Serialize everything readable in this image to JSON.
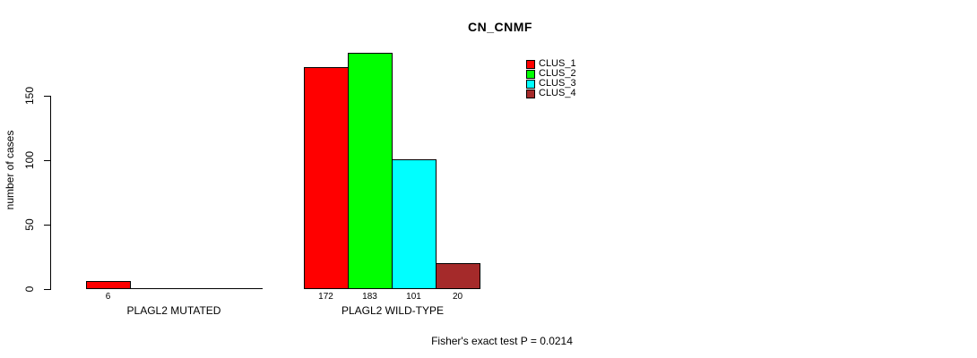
{
  "chart_data": {
    "type": "bar",
    "title": "CN_CNMF",
    "xlabel": "",
    "ylabel": "number of cases",
    "ylim": [
      0,
      150
    ],
    "yticks": [
      0,
      50,
      100,
      150
    ],
    "grid": false,
    "legend_position": "top-right",
    "categories": [
      "PLAGL2 MUTATED",
      "PLAGL2 WILD-TYPE"
    ],
    "series": [
      {
        "name": "CLUS_1",
        "color": "#FF0000",
        "values": [
          6,
          172
        ]
      },
      {
        "name": "CLUS_2",
        "color": "#00FF00",
        "values": [
          0,
          183
        ]
      },
      {
        "name": "CLUS_3",
        "color": "#00FFFF",
        "values": [
          0,
          101
        ]
      },
      {
        "name": "CLUS_4",
        "color": "#A52A2A",
        "values": [
          0,
          20
        ]
      }
    ],
    "bar_value_labels_shown_for_nonzero": true,
    "annotation": "Fisher's exact test P = 0.0214",
    "axis_color": "#000000",
    "background_color": "#FFFFFF"
  }
}
